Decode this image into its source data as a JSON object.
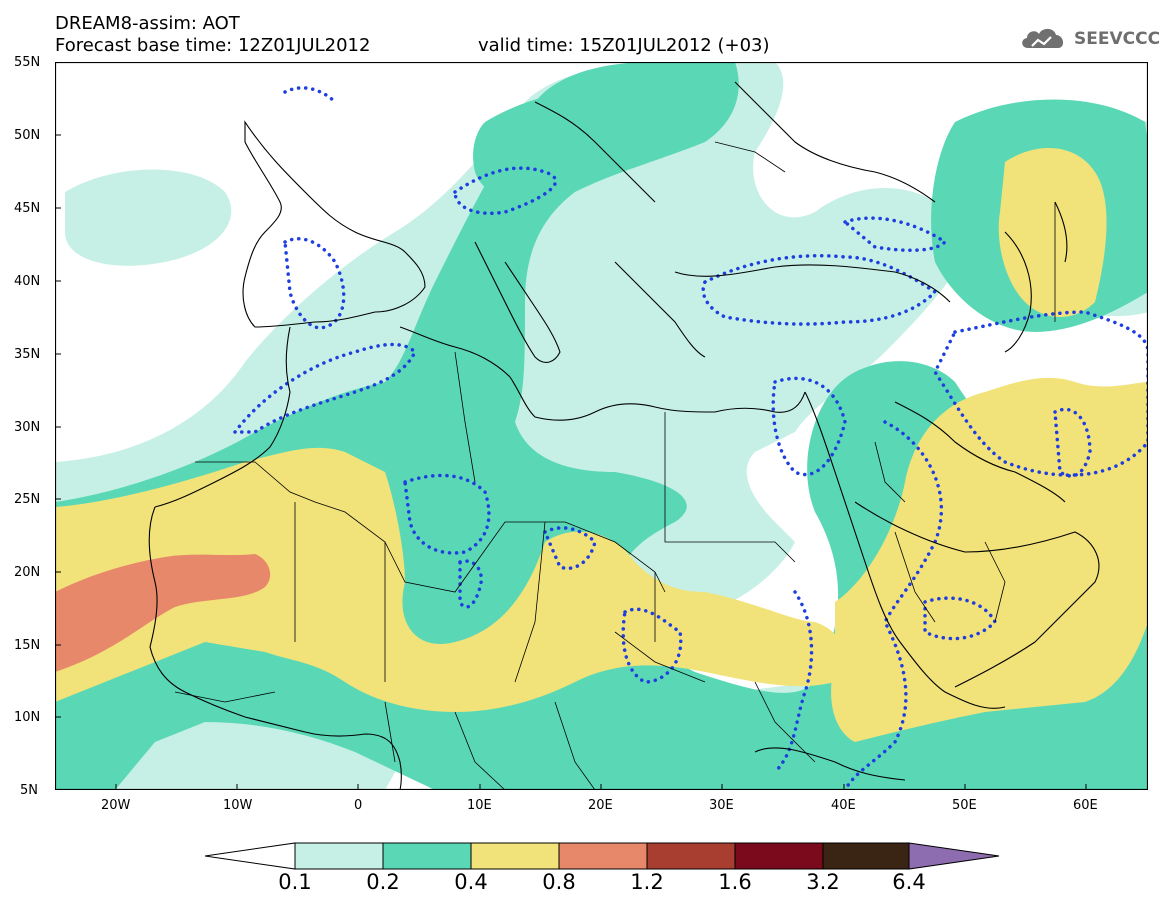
{
  "header": {
    "title": "DREAM8-assim: AOT",
    "base_time": "Forecast base time: 12Z01JUL2012",
    "valid_time": "valid time: 15Z01JUL2012 (+03)"
  },
  "logo": {
    "text": "SEEVCCC",
    "icon": "cloud-icon"
  },
  "map": {
    "projection": "lat-lon",
    "lon_range": [
      -25,
      65
    ],
    "lat_range": [
      5,
      55
    ],
    "lat_labels": [
      "55N",
      "50N",
      "45N",
      "40N",
      "35N",
      "30N",
      "25N",
      "20N",
      "15N",
      "10N",
      "5N"
    ],
    "lon_labels": [
      "20W",
      "10W",
      "0",
      "10E",
      "20E",
      "30E",
      "40E",
      "50E",
      "60E"
    ],
    "dotted_contour_color": "#1f3ee0"
  },
  "colorbar": {
    "labels": [
      "0.1",
      "0.2",
      "0.4",
      "0.8",
      "1.2",
      "1.6",
      "3.2",
      "6.4"
    ],
    "colors": [
      "#ffffff",
      "#c6f0e6",
      "#5ad8b6",
      "#f2e27a",
      "#e8886a",
      "#a83e30",
      "#7a0a1c",
      "#3a2414",
      "#8e6cb0"
    ]
  }
}
